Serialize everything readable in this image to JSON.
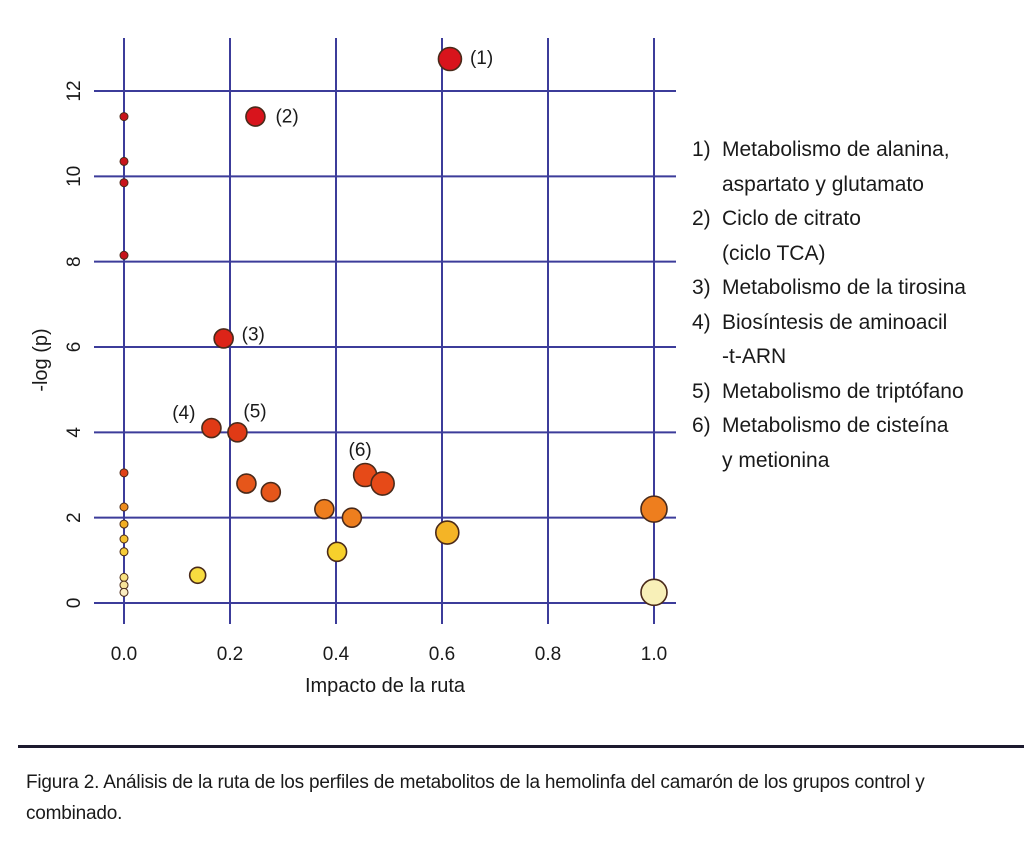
{
  "chart_data": {
    "type": "scatter",
    "xlabel": "Impacto de la ruta",
    "ylabel": "-log (p)",
    "xlim": [
      0.0,
      1.0
    ],
    "ylim": [
      0,
      12
    ],
    "x_ticks": [
      "0.0",
      "0.2",
      "0.4",
      "0.6",
      "0.8",
      "1.0"
    ],
    "y_ticks": [
      "0",
      "2",
      "4",
      "6",
      "8",
      "10",
      "12"
    ],
    "grid": true,
    "points": [
      {
        "x": 0.615,
        "y": 12.75,
        "size": "large",
        "color": "#d8141c",
        "label": "(1)"
      },
      {
        "x": 0.248,
        "y": 11.4,
        "size": "medium",
        "color": "#d8141c",
        "label": "(2)"
      },
      {
        "x": 0.188,
        "y": 6.2,
        "size": "medium",
        "color": "#dc2418",
        "label": "(3)"
      },
      {
        "x": 0.165,
        "y": 4.1,
        "size": "medium",
        "color": "#e03a16",
        "label": "(4)"
      },
      {
        "x": 0.214,
        "y": 4.0,
        "size": "medium",
        "color": "#e03a16",
        "label": "(5)"
      },
      {
        "x": 0.455,
        "y": 3.0,
        "size": "large",
        "color": "#e64a18",
        "label": "(6)"
      },
      {
        "x": 0.488,
        "y": 2.8,
        "size": "large",
        "color": "#e64a18",
        "label": ""
      },
      {
        "x": 0.0,
        "y": 11.4,
        "size": "tiny",
        "color": "#c8141c",
        "label": ""
      },
      {
        "x": 0.0,
        "y": 10.35,
        "size": "tiny",
        "color": "#c8141c",
        "label": ""
      },
      {
        "x": 0.0,
        "y": 9.85,
        "size": "tiny",
        "color": "#c8141c",
        "label": ""
      },
      {
        "x": 0.0,
        "y": 8.15,
        "size": "tiny",
        "color": "#c8141c",
        "label": ""
      },
      {
        "x": 0.0,
        "y": 3.05,
        "size": "tiny",
        "color": "#e04218",
        "label": ""
      },
      {
        "x": 0.0,
        "y": 2.25,
        "size": "tiny",
        "color": "#ee8c1e",
        "label": ""
      },
      {
        "x": 0.0,
        "y": 1.85,
        "size": "tiny",
        "color": "#f2ae24",
        "label": ""
      },
      {
        "x": 0.0,
        "y": 1.5,
        "size": "tiny",
        "color": "#f4c030",
        "label": ""
      },
      {
        "x": 0.0,
        "y": 1.2,
        "size": "tiny",
        "color": "#f6cc38",
        "label": ""
      },
      {
        "x": 0.0,
        "y": 0.6,
        "size": "tiny",
        "color": "#f8e080",
        "label": ""
      },
      {
        "x": 0.0,
        "y": 0.42,
        "size": "tiny",
        "color": "#f8e49a",
        "label": ""
      },
      {
        "x": 0.0,
        "y": 0.25,
        "size": "tiny",
        "color": "#faecc0",
        "label": ""
      },
      {
        "x": 0.231,
        "y": 2.8,
        "size": "medium",
        "color": "#e6561a",
        "label": ""
      },
      {
        "x": 0.277,
        "y": 2.6,
        "size": "medium",
        "color": "#e6561a",
        "label": ""
      },
      {
        "x": 0.378,
        "y": 2.2,
        "size": "medium",
        "color": "#ee7e1e",
        "label": ""
      },
      {
        "x": 0.43,
        "y": 2.0,
        "size": "medium",
        "color": "#ee7e1e",
        "label": ""
      },
      {
        "x": 0.402,
        "y": 1.2,
        "size": "medium",
        "color": "#f6d02c",
        "label": ""
      },
      {
        "x": 0.61,
        "y": 1.65,
        "size": "large",
        "color": "#f4b426",
        "label": ""
      },
      {
        "x": 0.139,
        "y": 0.65,
        "size": "small",
        "color": "#f8dc40",
        "label": ""
      },
      {
        "x": 1.0,
        "y": 2.2,
        "size": "xlarge",
        "color": "#ee7e1e",
        "label": ""
      },
      {
        "x": 1.0,
        "y": 0.25,
        "size": "xlarge",
        "color": "#f8f0b8",
        "label": ""
      }
    ]
  },
  "legend": [
    {
      "num": "1)",
      "text": "Metabolismo de alanina,"
    },
    {
      "num": "",
      "text": "aspartato y glutamato"
    },
    {
      "num": "2)",
      "text": "Ciclo de citrato"
    },
    {
      "num": "",
      "text": "(ciclo TCA)"
    },
    {
      "num": "3)",
      "text": "Metabolismo de la tirosina"
    },
    {
      "num": "4)",
      "text": "Biosíntesis de aminoacil"
    },
    {
      "num": "",
      "text": "-t-ARN"
    },
    {
      "num": "5)",
      "text": "Metabolismo de triptófano"
    },
    {
      "num": "6)",
      "text": "Metabolismo de cisteína"
    },
    {
      "num": "",
      "text": "y metionina"
    }
  ],
  "caption": {
    "label": "Figura 2.",
    "text": " Análisis de la ruta de los perfiles de metabolitos de la hemolinfa del camarón de los grupos control y combinado."
  }
}
